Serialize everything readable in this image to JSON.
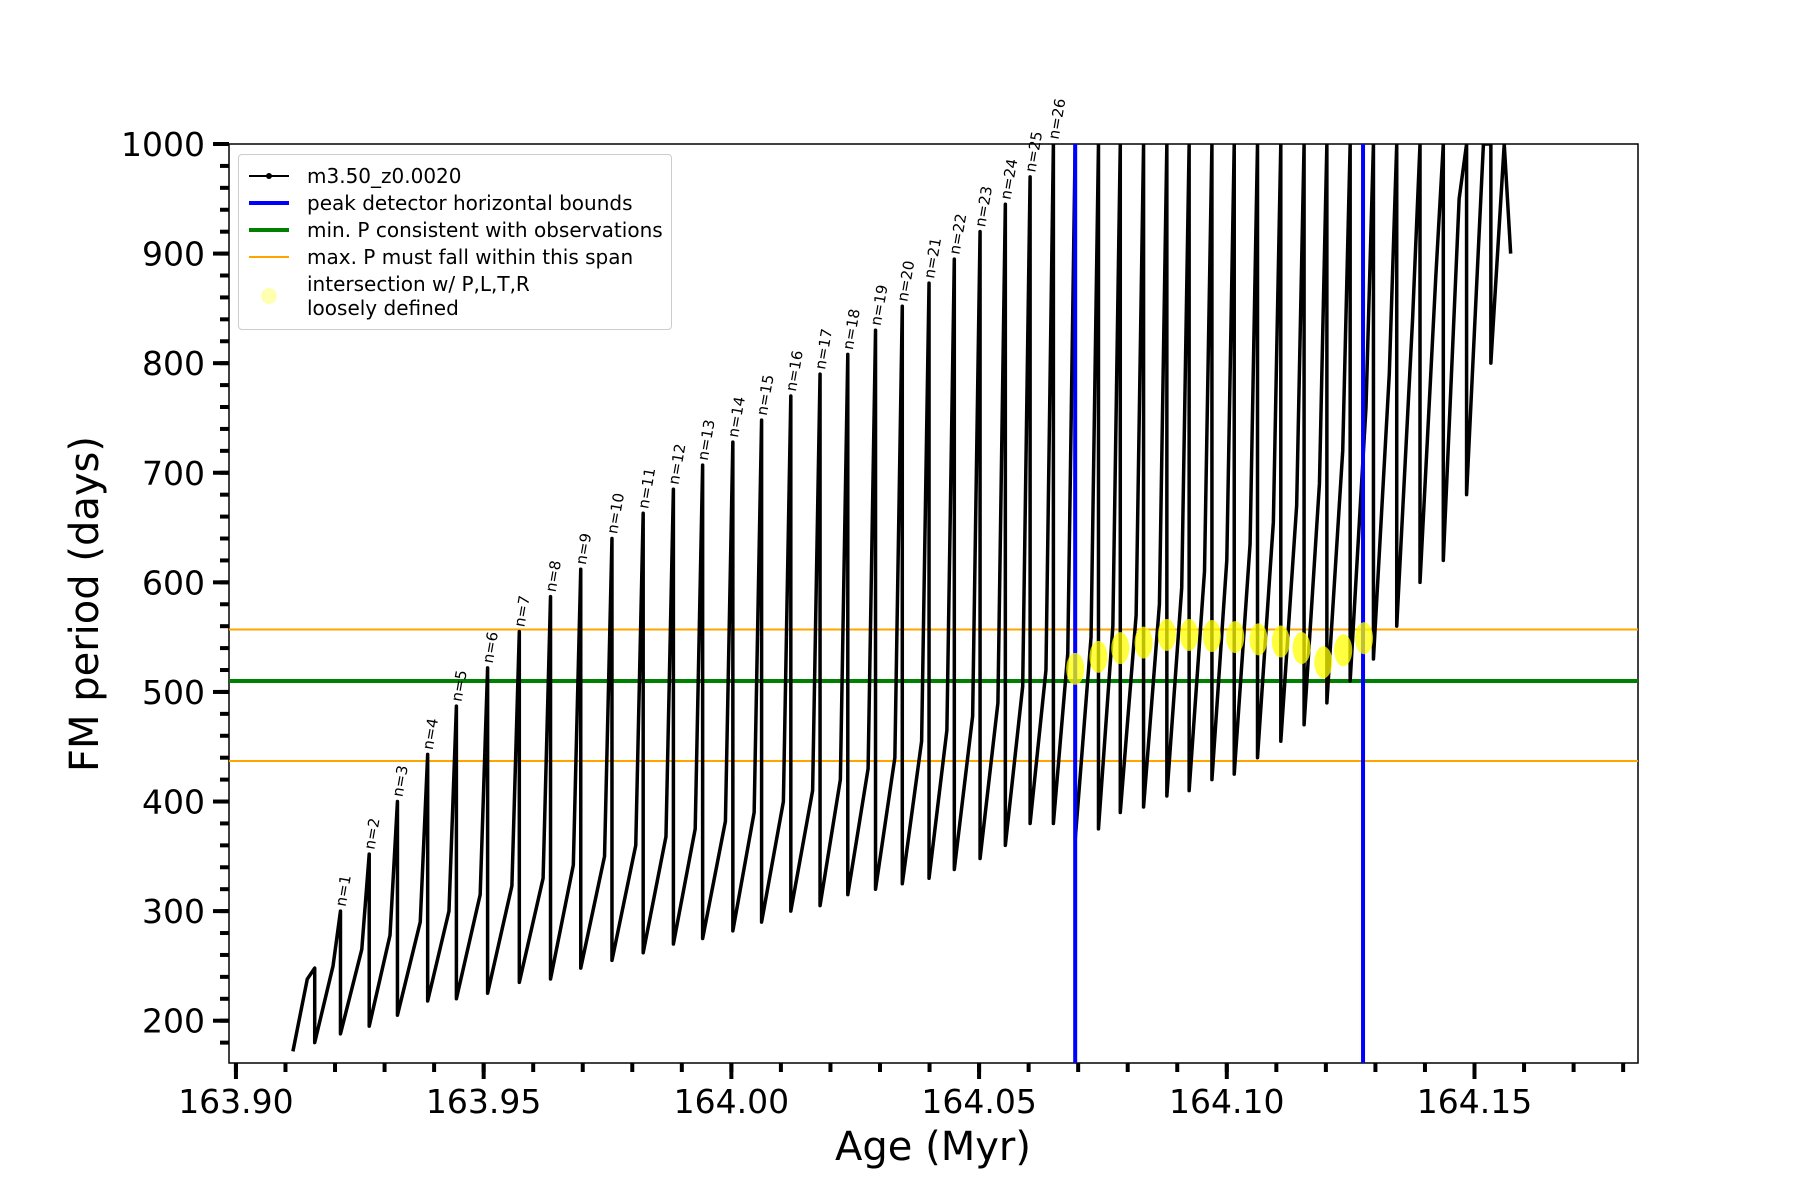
{
  "chart_data": {
    "type": "line",
    "xlabel": "Age (Myr)",
    "ylabel": "FM period (days)",
    "xlim": [
      163.8986,
      164.183
    ],
    "ylim": [
      161.4,
      1000
    ],
    "xticks": [
      {
        "value": 163.9,
        "label": "163.90"
      },
      {
        "value": 163.95,
        "label": "163.95"
      },
      {
        "value": 164.0,
        "label": "164.00"
      },
      {
        "value": 164.05,
        "label": "164.05"
      },
      {
        "value": 164.1,
        "label": "164.10"
      },
      {
        "value": 164.15,
        "label": "164.15"
      }
    ],
    "xminorticks": [
      163.9,
      163.91,
      163.92,
      163.93,
      163.94,
      163.95,
      163.96,
      163.97,
      163.98,
      163.99,
      164.0,
      164.01,
      164.02,
      164.03,
      164.04,
      164.05,
      164.06,
      164.07,
      164.08,
      164.09,
      164.1,
      164.11,
      164.12,
      164.13,
      164.14,
      164.15,
      164.16,
      164.17,
      164.18
    ],
    "yticks": [
      200,
      300,
      400,
      500,
      600,
      700,
      800,
      900,
      1000
    ],
    "yminorticks": [
      180,
      200,
      220,
      240,
      260,
      280,
      300,
      320,
      340,
      360,
      380,
      400,
      420,
      440,
      460,
      480,
      500,
      520,
      540,
      560,
      580,
      600,
      620,
      640,
      660,
      680,
      700,
      720,
      740,
      760,
      780,
      800,
      820,
      840,
      860,
      880,
      900,
      920,
      940,
      960,
      980,
      1000
    ],
    "series": [
      {
        "name": "m3.50_z0.0020",
        "type": "line",
        "color": "#000000",
        "x": [
          163.9115,
          163.9144,
          163.9159,
          163.9159,
          163.9196,
          163.9211,
          163.9211,
          163.9254,
          163.9269,
          163.9269,
          163.9311,
          163.9326,
          163.9326,
          163.9372,
          163.9387,
          163.9387,
          163.943,
          163.9445,
          163.9445,
          163.9493,
          163.9508,
          163.9508,
          163.9557,
          163.9572,
          163.9572,
          163.962,
          163.9635,
          163.9635,
          163.9681,
          163.9696,
          163.9696,
          163.9744,
          163.9759,
          163.9759,
          163.9807,
          163.9822,
          163.9822,
          163.9868,
          163.9883,
          163.9883,
          163.9927,
          163.9942,
          163.9942,
          163.9988,
          164.0003,
          164.0003,
          164.0046,
          164.0061,
          164.0061,
          164.0105,
          164.012,
          164.012,
          164.0164,
          164.0179,
          164.0179,
          164.022,
          164.0235,
          164.0235,
          164.0276,
          164.0291,
          164.0291,
          164.033,
          164.0345,
          164.0345,
          164.0384,
          164.0399,
          164.0399,
          164.0435,
          164.045,
          164.045,
          164.0487,
          164.0502,
          164.0502,
          164.0538,
          164.0553,
          164.0553,
          164.0588,
          164.0603,
          164.0603,
          164.0635,
          164.065,
          164.065,
          164.0679,
          164.0694,
          164.0694,
          164.0726,
          164.0741,
          164.0741,
          164.077,
          164.0785,
          164.0785,
          164.0817,
          164.0832,
          164.0832,
          164.0864,
          164.0879,
          164.0879,
          164.0909,
          164.0924,
          164.0924,
          164.0955,
          164.097,
          164.097,
          164.1,
          164.1015,
          164.1015,
          164.1047,
          164.1062,
          164.1062,
          164.1094,
          164.1109,
          164.1109,
          164.1141,
          164.1156,
          164.1156,
          164.1187,
          164.1202,
          164.1202,
          164.1234,
          164.1249,
          164.1249,
          164.1281,
          164.1296,
          164.1296,
          164.1328,
          164.1343,
          164.1343,
          164.1375,
          164.139,
          164.139,
          164.1422,
          164.1437,
          164.1437,
          164.1469,
          164.1484,
          164.1484,
          164.1518,
          164.1533,
          164.1533,
          164.156,
          164.1573
        ],
        "values": [
          172,
          238,
          248,
          180,
          250,
          300,
          188,
          265,
          352,
          195,
          278,
          400,
          205,
          290,
          443,
          218,
          300,
          487,
          220,
          315,
          522,
          225,
          323,
          555,
          235,
          330,
          587,
          238,
          342,
          612,
          248,
          350,
          640,
          255,
          360,
          663,
          262,
          368,
          685,
          270,
          375,
          707,
          275,
          382,
          728,
          282,
          390,
          748,
          290,
          400,
          770,
          300,
          410,
          790,
          305,
          420,
          808,
          315,
          430,
          830,
          320,
          440,
          852,
          325,
          455,
          873,
          330,
          465,
          895,
          338,
          478,
          920,
          348,
          490,
          945,
          360,
          505,
          970,
          380,
          520,
          1000,
          380,
          535,
          1000,
          365,
          550,
          1000,
          375,
          560,
          1000,
          390,
          570,
          1000,
          395,
          580,
          1000,
          405,
          595,
          1000,
          410,
          610,
          1000,
          420,
          620,
          1000,
          425,
          635,
          1000,
          440,
          655,
          1000,
          455,
          670,
          1000,
          470,
          690,
          1000,
          490,
          720,
          1000,
          510,
          760,
          1000,
          530,
          790,
          1000,
          560,
          840,
          1000,
          600,
          880,
          1000,
          620,
          950,
          1000,
          680,
          1000,
          1000,
          800,
          1000,
          900
        ]
      },
      {
        "name": "intersection w/ P,L,T,R\nloosely defined",
        "type": "scatter",
        "color": "#ffff00",
        "x": [
          164.0694,
          164.0741,
          164.0785,
          164.0832,
          164.0879,
          164.0924,
          164.097,
          164.1017,
          164.1064,
          164.1109,
          164.1151,
          164.1195,
          164.1235,
          164.1277
        ],
        "values": [
          521,
          532,
          540,
          545,
          552,
          552,
          551,
          550,
          548,
          546,
          540,
          527,
          538,
          549
        ]
      }
    ],
    "vlines": {
      "name": "peak detector horizontal bounds",
      "color": "#0000ff",
      "x": [
        164.0694,
        164.1275
      ]
    },
    "hlines": [
      {
        "name": "min. P consistent with observations",
        "color": "#008000",
        "values": [
          510
        ]
      },
      {
        "name": "max. P must fall within this span",
        "color": "#ffa500",
        "values": [
          557,
          437
        ]
      }
    ],
    "annotations": [
      {
        "text": "n=1",
        "x": 163.9211,
        "y": 300
      },
      {
        "text": "n=2",
        "x": 163.9269,
        "y": 352
      },
      {
        "text": "n=3",
        "x": 163.9326,
        "y": 400
      },
      {
        "text": "n=4",
        "x": 163.9387,
        "y": 443
      },
      {
        "text": "n=5",
        "x": 163.9445,
        "y": 487
      },
      {
        "text": "n=6",
        "x": 163.9508,
        "y": 522
      },
      {
        "text": "n=7",
        "x": 163.9572,
        "y": 555
      },
      {
        "text": "n=8",
        "x": 163.9635,
        "y": 587
      },
      {
        "text": "n=9",
        "x": 163.9696,
        "y": 612
      },
      {
        "text": "n=10",
        "x": 163.9759,
        "y": 640
      },
      {
        "text": "n=11",
        "x": 163.9822,
        "y": 663
      },
      {
        "text": "n=12",
        "x": 163.9883,
        "y": 685
      },
      {
        "text": "n=13",
        "x": 163.9942,
        "y": 707
      },
      {
        "text": "n=14",
        "x": 164.0003,
        "y": 728
      },
      {
        "text": "n=15",
        "x": 164.0061,
        "y": 748
      },
      {
        "text": "n=16",
        "x": 164.012,
        "y": 770
      },
      {
        "text": "n=17",
        "x": 164.0179,
        "y": 790
      },
      {
        "text": "n=18",
        "x": 164.0235,
        "y": 808
      },
      {
        "text": "n=19",
        "x": 164.0291,
        "y": 830
      },
      {
        "text": "n=20",
        "x": 164.0345,
        "y": 852
      },
      {
        "text": "n=21",
        "x": 164.0399,
        "y": 873
      },
      {
        "text": "n=22",
        "x": 164.045,
        "y": 895
      },
      {
        "text": "n=23",
        "x": 164.0502,
        "y": 920
      },
      {
        "text": "n=24",
        "x": 164.0553,
        "y": 945
      },
      {
        "text": "n=25",
        "x": 164.0603,
        "y": 970
      },
      {
        "text": "n=26",
        "x": 164.065,
        "y": 1000
      }
    ]
  }
}
